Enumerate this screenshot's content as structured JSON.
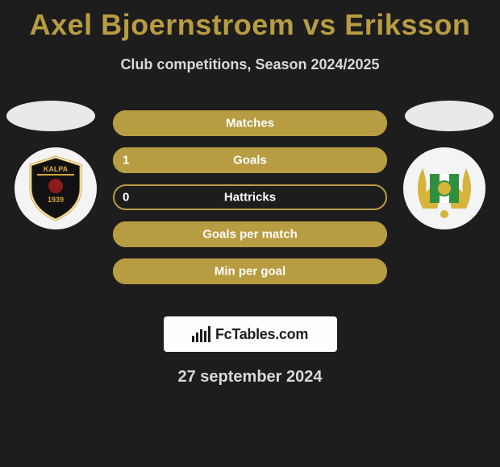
{
  "title": "Axel Bjoernstroem vs Eriksson",
  "subtitle": "Club competitions, Season 2024/2025",
  "date": "27 september 2024",
  "logo_text": "FcTables.com",
  "colors": {
    "accent": "#b89c42",
    "bg": "#1d1d1d",
    "text_light": "#d9d9d9",
    "white": "#ffffff",
    "logo_bg": "#fdfefd"
  },
  "bars": [
    {
      "label": "Matches",
      "fill_pct": 100,
      "left_num": ""
    },
    {
      "label": "Goals",
      "fill_pct": 100,
      "left_num": "1"
    },
    {
      "label": "Hattricks",
      "fill_pct": 0,
      "left_num": "0"
    },
    {
      "label": "Goals per match",
      "fill_pct": 100,
      "left_num": ""
    },
    {
      "label": "Min per goal",
      "fill_pct": 100,
      "left_num": ""
    }
  ],
  "badges": {
    "left": {
      "type": "shield",
      "bg": "#f4f4f4"
    },
    "right": {
      "type": "wreath",
      "bg": "#f4f4f4"
    }
  }
}
